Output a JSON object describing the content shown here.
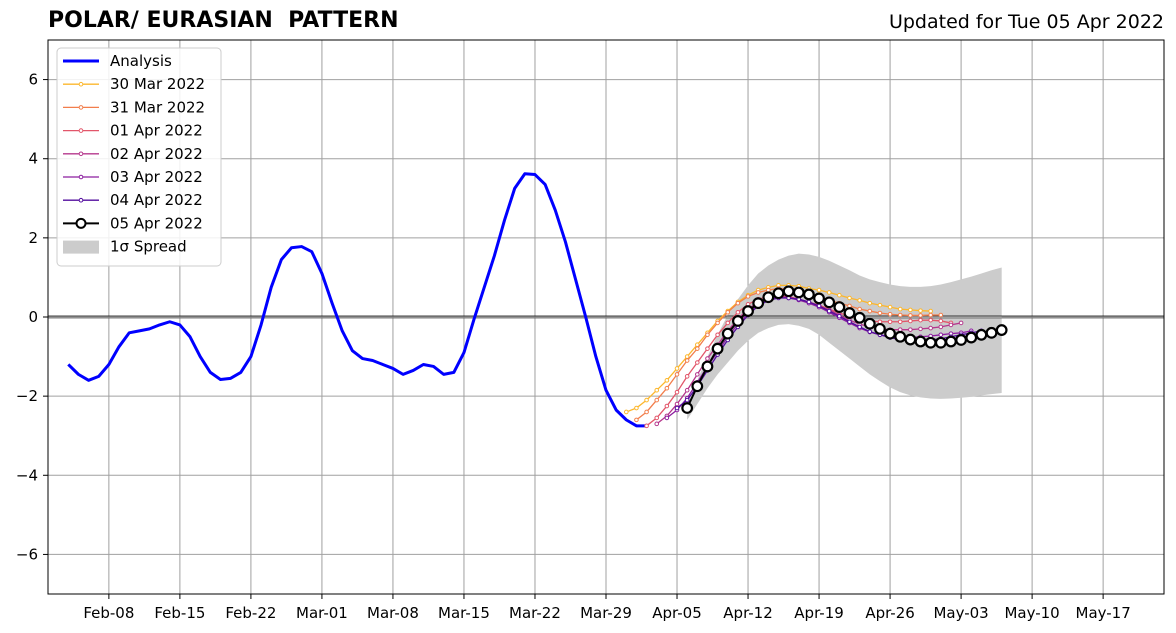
{
  "header": {
    "title": "POLAR/ EURASIAN  PATTERN",
    "updated": "Updated for Tue 05 Apr 2022"
  },
  "chart_data": {
    "type": "line",
    "x_unit": "days",
    "xlim": [
      "2022-02-02",
      "2022-05-23"
    ],
    "ylim": [
      -7,
      7
    ],
    "grid": true,
    "zero_line": true,
    "legend_position": "top-left",
    "x_ticks": [
      {
        "date": "2022-02-08",
        "label": "Feb-08"
      },
      {
        "date": "2022-02-15",
        "label": "Feb-15"
      },
      {
        "date": "2022-02-22",
        "label": "Feb-22"
      },
      {
        "date": "2022-03-01",
        "label": "Mar-01"
      },
      {
        "date": "2022-03-08",
        "label": "Mar-08"
      },
      {
        "date": "2022-03-15",
        "label": "Mar-15"
      },
      {
        "date": "2022-03-22",
        "label": "Mar-22"
      },
      {
        "date": "2022-03-29",
        "label": "Mar-29"
      },
      {
        "date": "2022-04-05",
        "label": "Apr-05"
      },
      {
        "date": "2022-04-12",
        "label": "Apr-12"
      },
      {
        "date": "2022-04-19",
        "label": "Apr-19"
      },
      {
        "date": "2022-04-26",
        "label": "Apr-26"
      },
      {
        "date": "2022-05-03",
        "label": "May-03"
      },
      {
        "date": "2022-05-10",
        "label": "May-10"
      },
      {
        "date": "2022-05-17",
        "label": "May-17"
      }
    ],
    "y_ticks": [
      {
        "value": 6,
        "label": "6"
      },
      {
        "value": 4,
        "label": "4"
      },
      {
        "value": 2,
        "label": "2"
      },
      {
        "value": 0,
        "label": "0"
      },
      {
        "value": -2,
        "label": "−2"
      },
      {
        "value": -4,
        "label": "−4"
      },
      {
        "value": -6,
        "label": "−6"
      }
    ],
    "analysis": {
      "name": "Analysis",
      "color": "#0000ff",
      "start_date": "2022-02-04",
      "values": [
        -1.2,
        -1.45,
        -1.6,
        -1.5,
        -1.2,
        -0.75,
        -0.4,
        -0.35,
        -0.3,
        -0.2,
        -0.12,
        -0.2,
        -0.5,
        -1.0,
        -1.4,
        -1.58,
        -1.55,
        -1.4,
        -1.0,
        -0.2,
        0.75,
        1.45,
        1.75,
        1.78,
        1.65,
        1.1,
        0.35,
        -0.35,
        -0.85,
        -1.05,
        -1.1,
        -1.2,
        -1.3,
        -1.45,
        -1.35,
        -1.2,
        -1.25,
        -1.45,
        -1.4,
        -0.9,
        -0.05,
        0.75,
        1.55,
        2.45,
        3.25,
        3.62,
        3.6,
        3.35,
        2.7,
        1.9,
        0.95,
        0.0,
        -1.0,
        -1.85,
        -2.35,
        -2.6,
        -2.75,
        -2.75
      ]
    },
    "forecasts": [
      {
        "name": "30 Mar 2022",
        "color": "#fcb72d",
        "start_date": "2022-03-31",
        "values": [
          -2.4,
          -2.3,
          -2.1,
          -1.85,
          -1.6,
          -1.3,
          -1.0,
          -0.7,
          -0.4,
          -0.1,
          0.15,
          0.38,
          0.55,
          0.68,
          0.75,
          0.8,
          0.8,
          0.78,
          0.72,
          0.68,
          0.62,
          0.55,
          0.48,
          0.42,
          0.35,
          0.3,
          0.25,
          0.2,
          0.18,
          0.16,
          0.15
        ]
      },
      {
        "name": "31 Mar 2022",
        "color": "#f27e4c",
        "start_date": "2022-04-01",
        "values": [
          -2.6,
          -2.4,
          -2.1,
          -1.8,
          -1.45,
          -1.1,
          -0.8,
          -0.45,
          -0.15,
          0.12,
          0.35,
          0.52,
          0.62,
          0.68,
          0.72,
          0.7,
          0.65,
          0.58,
          0.5,
          0.42,
          0.35,
          0.28,
          0.2,
          0.15,
          0.1,
          0.07,
          0.05,
          0.04,
          0.04,
          0.05,
          0.05
        ]
      },
      {
        "name": "01 Apr 2022",
        "color": "#e2566a",
        "start_date": "2022-04-02",
        "values": [
          -2.75,
          -2.55,
          -2.25,
          -1.9,
          -1.5,
          -1.15,
          -0.8,
          -0.45,
          -0.15,
          0.12,
          0.32,
          0.45,
          0.52,
          0.55,
          0.52,
          0.45,
          0.38,
          0.3,
          0.2,
          0.1,
          0.02,
          -0.05,
          -0.1,
          -0.12,
          -0.12,
          -0.12,
          -0.1,
          -0.08,
          -0.08,
          -0.1,
          -0.15
        ]
      },
      {
        "name": "02 Apr 2022",
        "color": "#b5378c",
        "start_date": "2022-04-03",
        "values": [
          -2.7,
          -2.5,
          -2.2,
          -1.85,
          -1.45,
          -1.05,
          -0.7,
          -0.35,
          -0.05,
          0.2,
          0.38,
          0.48,
          0.52,
          0.5,
          0.45,
          0.38,
          0.28,
          0.18,
          0.05,
          -0.08,
          -0.18,
          -0.25,
          -0.3,
          -0.32,
          -0.32,
          -0.32,
          -0.3,
          -0.28,
          -0.25,
          -0.2,
          -0.15
        ]
      },
      {
        "name": "03 Apr 2022",
        "color": "#8c1e9f",
        "start_date": "2022-04-04",
        "values": [
          -2.55,
          -2.35,
          -2.05,
          -1.65,
          -1.25,
          -0.88,
          -0.5,
          -0.18,
          0.1,
          0.32,
          0.45,
          0.5,
          0.48,
          0.43,
          0.35,
          0.25,
          0.12,
          -0.02,
          -0.15,
          -0.28,
          -0.38,
          -0.45,
          -0.5,
          -0.52,
          -0.52,
          -0.5,
          -0.48,
          -0.45,
          -0.42,
          -0.4,
          -0.35
        ]
      },
      {
        "name": "04 Apr 2022",
        "color": "#520c9e",
        "start_date": "2022-04-05",
        "values": [
          -2.3,
          -2.1,
          -1.75,
          -1.35,
          -0.95,
          -0.58,
          -0.25,
          0.05,
          0.28,
          0.42,
          0.48,
          0.48,
          0.45,
          0.38,
          0.28,
          0.15,
          0.02,
          -0.12,
          -0.25,
          -0.37,
          -0.45,
          -0.52,
          -0.57,
          -0.6,
          -0.6,
          -0.58,
          -0.55,
          -0.5,
          -0.45,
          -0.4,
          -0.35
        ]
      },
      {
        "name": "05 Apr 2022",
        "color": "#000000",
        "start_date": "2022-04-06",
        "values": [
          -2.3,
          -1.75,
          -1.25,
          -0.8,
          -0.42,
          -0.1,
          0.15,
          0.35,
          0.5,
          0.6,
          0.65,
          0.62,
          0.57,
          0.47,
          0.37,
          0.25,
          0.1,
          -0.02,
          -0.17,
          -0.3,
          -0.42,
          -0.5,
          -0.57,
          -0.62,
          -0.65,
          -0.65,
          -0.62,
          -0.58,
          -0.52,
          -0.45,
          -0.4,
          -0.33
        ]
      }
    ],
    "spread": {
      "name": "1σ Spread",
      "color": "#cccccc",
      "start_date": "2022-04-06",
      "upper": [
        -2.2,
        -1.6,
        -1.0,
        -0.45,
        0.05,
        0.45,
        0.8,
        1.1,
        1.3,
        1.45,
        1.55,
        1.6,
        1.58,
        1.52,
        1.42,
        1.3,
        1.18,
        1.05,
        0.95,
        0.88,
        0.82,
        0.78,
        0.76,
        0.76,
        0.78,
        0.82,
        0.88,
        0.95,
        1.02,
        1.1,
        1.18,
        1.25
      ],
      "lower": [
        -2.6,
        -2.2,
        -1.8,
        -1.45,
        -1.15,
        -0.85,
        -0.6,
        -0.4,
        -0.28,
        -0.2,
        -0.18,
        -0.22,
        -0.3,
        -0.45,
        -0.65,
        -0.85,
        -1.05,
        -1.25,
        -1.45,
        -1.62,
        -1.78,
        -1.9,
        -1.98,
        -2.03,
        -2.06,
        -2.07,
        -2.06,
        -2.04,
        -2.02,
        -1.98,
        -1.95,
        -1.92
      ]
    }
  }
}
